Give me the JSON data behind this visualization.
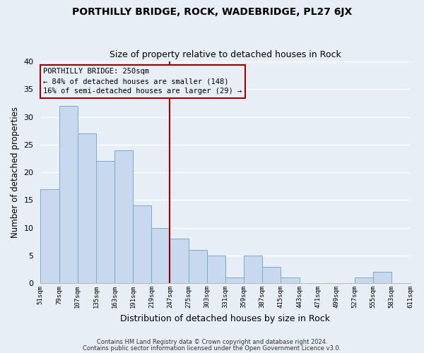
{
  "title": "PORTHILLY BRIDGE, ROCK, WADEBRIDGE, PL27 6JX",
  "subtitle": "Size of property relative to detached houses in Rock",
  "xlabel": "Distribution of detached houses by size in Rock",
  "ylabel": "Number of detached properties",
  "bar_color": "#c8d8ee",
  "bar_edge_color": "#7aaacc",
  "background_color": "#e8eef5",
  "grid_color": "#ffffff",
  "bins": [
    51,
    79,
    107,
    135,
    163,
    191,
    219,
    247,
    275,
    303,
    331,
    359,
    387,
    415,
    443,
    471,
    499,
    527,
    555,
    583,
    611
  ],
  "counts": [
    17,
    32,
    27,
    22,
    24,
    14,
    10,
    8,
    6,
    5,
    1,
    5,
    3,
    1,
    0,
    0,
    0,
    1,
    2,
    0
  ],
  "tick_labels": [
    "51sqm",
    "79sqm",
    "107sqm",
    "135sqm",
    "163sqm",
    "191sqm",
    "219sqm",
    "247sqm",
    "275sqm",
    "303sqm",
    "331sqm",
    "359sqm",
    "387sqm",
    "415sqm",
    "443sqm",
    "471sqm",
    "499sqm",
    "527sqm",
    "555sqm",
    "583sqm",
    "611sqm"
  ],
  "vline_x": 247,
  "vline_color": "#990000",
  "annotation_line1": "PORTHILLY BRIDGE: 250sqm",
  "annotation_line2": "← 84% of detached houses are smaller (148)",
  "annotation_line3": "16% of semi-detached houses are larger (29) →",
  "annotation_box_edge": "#990000",
  "ylim": [
    0,
    40
  ],
  "yticks": [
    0,
    5,
    10,
    15,
    20,
    25,
    30,
    35,
    40
  ],
  "footer_line1": "Contains HM Land Registry data © Crown copyright and database right 2024.",
  "footer_line2": "Contains public sector information licensed under the Open Government Licence v3.0."
}
